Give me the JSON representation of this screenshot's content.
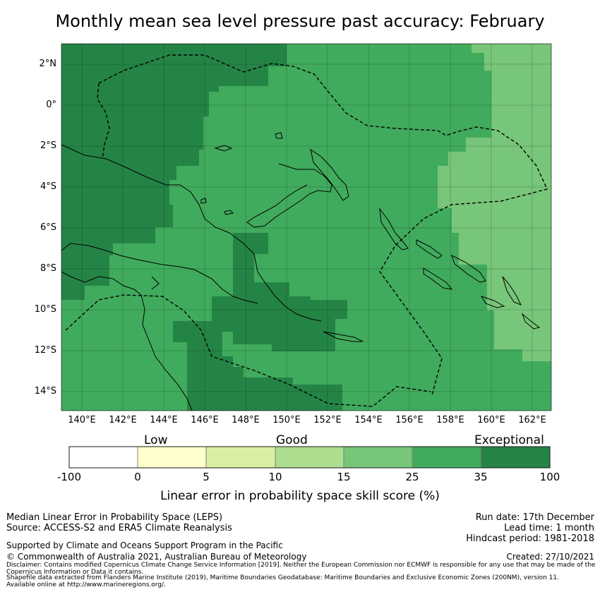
{
  "title": "Monthly mean sea level pressure past accuracy: February",
  "colors": {
    "exceptional": "#248446",
    "c25_35": "#41ab5d",
    "c15_25": "#78c679",
    "c10_15": "#addd8e",
    "c5_10": "#d9f0a3",
    "c0_5": "#ffffcc",
    "neg": "#ffffff"
  },
  "map": {
    "lat_labels": [
      "2°N",
      "0°",
      "2°S",
      "4°S",
      "6°S",
      "8°S",
      "10°S",
      "12°S",
      "14°S"
    ],
    "lon_labels": [
      "140°E",
      "142°E",
      "144°E",
      "146°E",
      "148°E",
      "150°E",
      "152°E",
      "154°E",
      "156°E",
      "158°E",
      "160°E",
      "162°E"
    ]
  },
  "colorbar": {
    "categories": [
      "Low",
      "Good",
      "Exceptional"
    ],
    "ticks": [
      "-100",
      "0",
      "5",
      "10",
      "15",
      "25",
      "35",
      "100"
    ],
    "label": "Linear error in probability space skill score (%)"
  },
  "footer": {
    "method": "Median Linear Error in Probability Space (LEPS)",
    "source": "Source: ACCESS-S2 and ERA5 Climate Reanalysis",
    "support": "Supported by Climate and Oceans Support Program in the Pacific",
    "copyright": "© Commonwealth of Australia 2021, Australian Bureau of Meteorology",
    "disclaimer": "Disclaimer: Contains modified Copernicus Climate Change Service Information [2019]. Neither the European Commission nor ECMWF is responsible for any use that may be made of the Copernicus Information or Data it contains.",
    "shapefile": "Shapefile data extracted from Flanders Marine Institute (2019), Maritime Boundaries Geodatabase: Maritime Boundaries and Exclusive Economic Zones (200NM), version 11. Available online at http://www.marineregions.org/.",
    "run_date": "Run date: 17th December",
    "lead_time": "Lead time: 1 month",
    "hindcast": "Hindcast period: 1981-2018",
    "created": "Created: 27/10/2021"
  }
}
